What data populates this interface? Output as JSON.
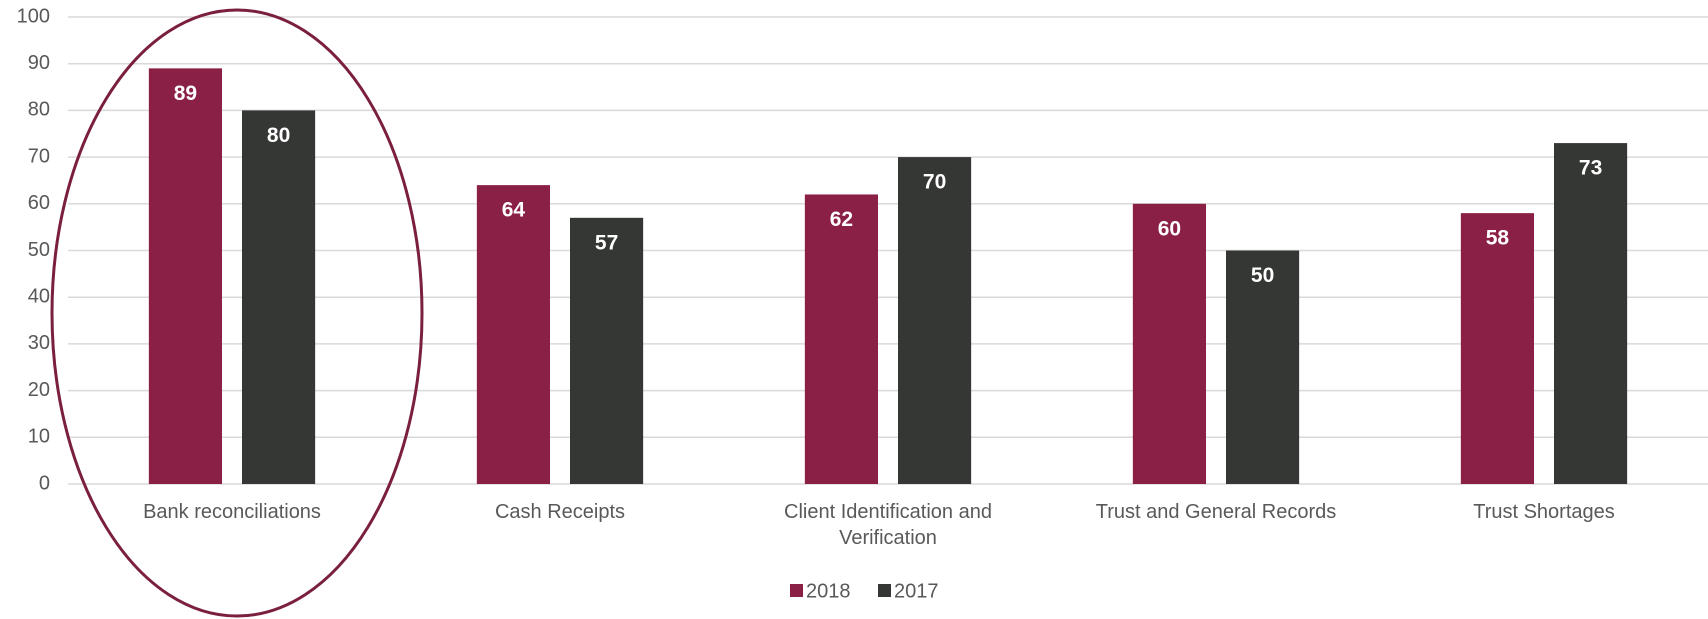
{
  "chart_data": {
    "type": "bar",
    "categories": [
      "Bank reconciliations",
      "Cash Receipts",
      "Client Identification and Verification",
      "Trust and General Records",
      "Trust Shortages"
    ],
    "series": [
      {
        "name": "2018",
        "color": "#8b2046",
        "values": [
          89,
          64,
          62,
          60,
          58
        ]
      },
      {
        "name": "2017",
        "color": "#353734",
        "values": [
          80,
          57,
          70,
          50,
          73
        ]
      }
    ],
    "ylim": [
      0,
      100
    ],
    "yticks": [
      0,
      10,
      20,
      30,
      40,
      50,
      60,
      70,
      80,
      90,
      100
    ],
    "grid": true,
    "legend": "bottom"
  }
}
